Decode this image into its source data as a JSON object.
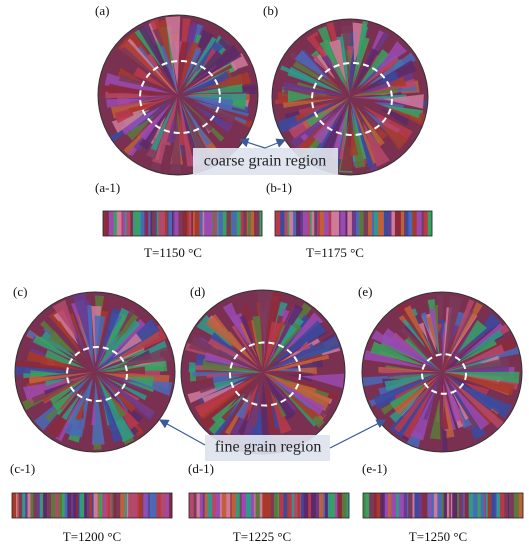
{
  "panels": [
    {
      "label": "(a)",
      "sub_label": "(a-1)",
      "temperature": "T=1150 °C"
    },
    {
      "label": "(b)",
      "sub_label": "(b-1)",
      "temperature": "T=1175 °C"
    },
    {
      "label": "(c)",
      "sub_label": "(c-1)",
      "temperature": "T=1200 °C"
    },
    {
      "label": "(d)",
      "sub_label": "(d-1)",
      "temperature": "T=1225 °C"
    },
    {
      "label": "(e)",
      "sub_label": "(e-1)",
      "temperature": "T=1250 °C"
    }
  ],
  "annotations": {
    "coarse": "coarse grain  region",
    "fine": "fine grain region"
  }
}
